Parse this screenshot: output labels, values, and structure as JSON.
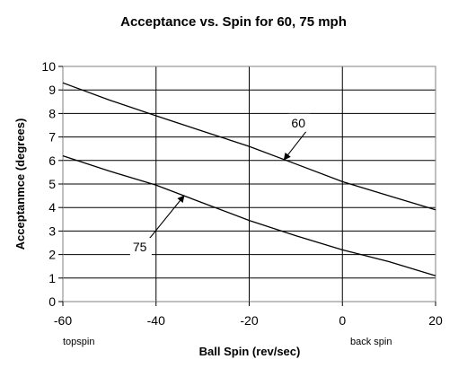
{
  "chart_data": {
    "type": "line",
    "title": "Acceptance vs. Spin for 60, 75 mph",
    "xlabel": "Ball Spin (rev/sec)",
    "ylabel": "Acceptanmce (degrees)",
    "xlim": [
      -60,
      20
    ],
    "ylim": [
      0,
      10
    ],
    "xticks": [
      -60,
      -40,
      -20,
      0,
      20
    ],
    "yticks": [
      0,
      1,
      2,
      3,
      4,
      5,
      6,
      7,
      8,
      9,
      10
    ],
    "grid": true,
    "x_notes": {
      "left": "topspin",
      "right": "back spin"
    },
    "series": [
      {
        "name": "60",
        "x": [
          -60,
          -50,
          -40,
          -30,
          -20,
          -10,
          0,
          10,
          20
        ],
        "y": [
          9.3,
          8.57,
          7.9,
          7.25,
          6.6,
          5.85,
          5.1,
          4.5,
          3.9
        ]
      },
      {
        "name": "75",
        "x": [
          -60,
          -50,
          -40,
          -30,
          -20,
          -10,
          0,
          10,
          20
        ],
        "y": [
          6.2,
          5.55,
          4.95,
          4.2,
          3.45,
          2.8,
          2.2,
          1.7,
          1.1
        ]
      }
    ],
    "annotations": [
      {
        "text": "60",
        "series": "60",
        "x": -12.5
      },
      {
        "text": "75",
        "series": "75",
        "x": -34
      }
    ]
  }
}
